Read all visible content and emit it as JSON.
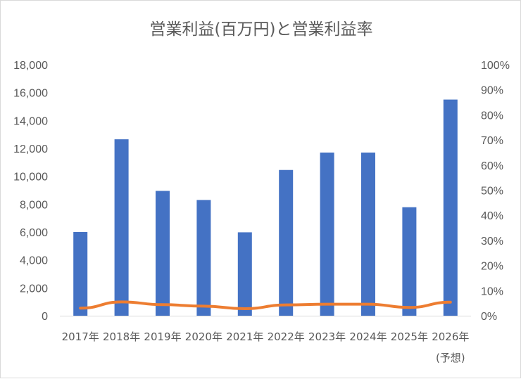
{
  "chart_data": {
    "type": "bar",
    "title": "営業利益(百万円)と営業利益率",
    "categories": [
      "2017年",
      "2018年",
      "2019年",
      "2020年",
      "2021年",
      "2022年",
      "2023年",
      "2024年",
      "2025年",
      "2026年"
    ],
    "category_notes": [
      "",
      "",
      "",
      "",
      "",
      "",
      "",
      "",
      "",
      "(予想)"
    ],
    "series": [
      {
        "type": "bar",
        "color": "#4472c4",
        "axis": "left",
        "values": [
          6000,
          12650,
          8950,
          8300,
          5980,
          10450,
          11700,
          11700,
          7780,
          15500
        ]
      },
      {
        "type": "line",
        "color": "#ed7d31",
        "axis": "right",
        "values": [
          0.03,
          0.055,
          0.044,
          0.038,
          0.028,
          0.043,
          0.046,
          0.046,
          0.033,
          0.054
        ]
      }
    ],
    "ylim": [
      0,
      18000
    ],
    "y_ticks": [
      "0",
      "2,000",
      "4,000",
      "6,000",
      "8,000",
      "10,000",
      "12,000",
      "14,000",
      "16,000",
      "18,000"
    ],
    "y2lim": [
      0,
      1
    ],
    "y2_ticks": [
      "0%",
      "10%",
      "20%",
      "30%",
      "40%",
      "50%",
      "60%",
      "70%",
      "80%",
      "90%",
      "100%"
    ],
    "grid": false,
    "legend": "none"
  }
}
